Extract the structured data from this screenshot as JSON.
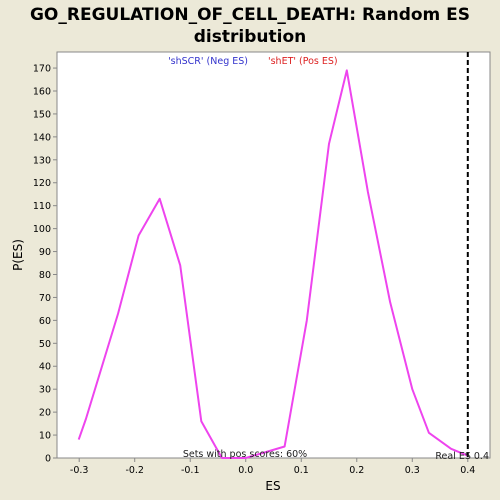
{
  "chart_data": {
    "type": "line",
    "title_line1": "GO_REGULATION_OF_CELL_DEATH: Random ES",
    "title_line2": "distribution",
    "xlabel": "ES",
    "ylabel": "P(ES)",
    "xlim": [
      -0.34,
      0.44
    ],
    "ylim": [
      0,
      177
    ],
    "x_ticks": [
      -0.3,
      -0.2,
      -0.1,
      0.0,
      0.1,
      0.2,
      0.3,
      0.4
    ],
    "x_tick_labels": [
      "-0.3",
      "-0.2",
      "-0.1",
      "0.0",
      "0.1",
      "0.2",
      "0.3",
      "0.4"
    ],
    "y_ticks": [
      0,
      10,
      20,
      30,
      40,
      50,
      60,
      70,
      80,
      90,
      100,
      110,
      120,
      130,
      140,
      150,
      160,
      170
    ],
    "y_tick_labels": [
      "0",
      "10",
      "20",
      "30",
      "40",
      "50",
      "60",
      "70",
      "80",
      "90",
      "100",
      "110",
      "120",
      "130",
      "140",
      "150",
      "160",
      "170"
    ],
    "grid": false,
    "series": [
      {
        "color": "#ee44ee",
        "x": [
          -0.301,
          -0.288,
          -0.23,
          -0.193,
          -0.155,
          -0.118,
          -0.08,
          -0.043,
          0.0,
          0.07,
          0.11,
          0.15,
          0.182,
          0.22,
          0.26,
          0.3,
          0.33,
          0.37,
          0.4
        ],
        "y": [
          8,
          17,
          63,
          97,
          113,
          84,
          16,
          0,
          0,
          5,
          60,
          137,
          169,
          116,
          68,
          30,
          11,
          4,
          1
        ]
      }
    ],
    "legend": {
      "placement": "top-center",
      "neg_label": "'shSCR' (Neg ES)",
      "neg_color": "#3333cc",
      "pos_label": "'shET' (Pos ES)",
      "pos_color": "#dd2222"
    },
    "real_es": {
      "value": 0.4,
      "label": "Real ES 0.4"
    },
    "annotation": "Sets with pos scores: 60%"
  }
}
